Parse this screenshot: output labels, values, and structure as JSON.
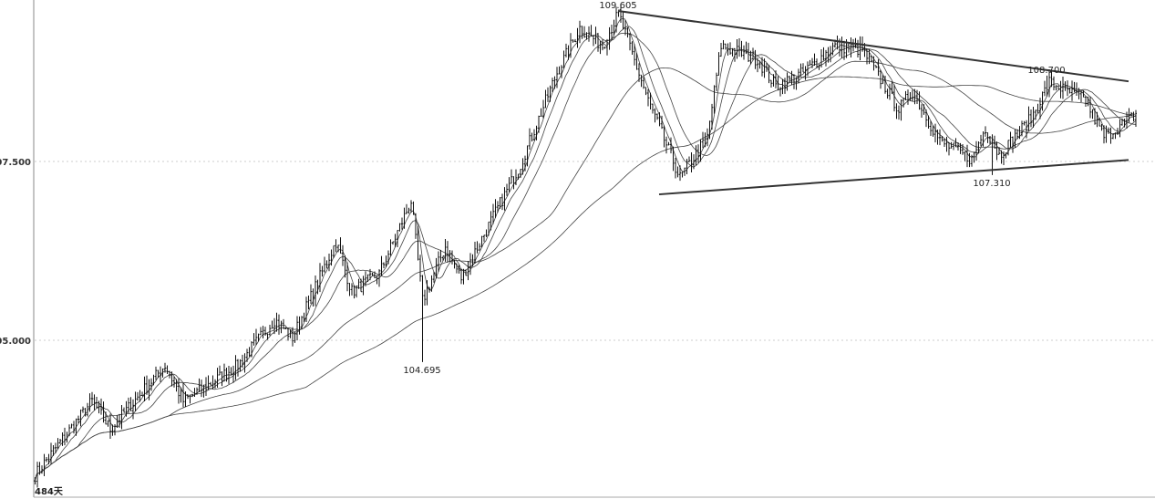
{
  "chart_data": {
    "type": "ohlc",
    "title": "",
    "xlabel": "",
    "ylabel": "",
    "ylim": [
      102.9,
      109.85
    ],
    "y_ticks": [
      {
        "value": 107.5,
        "label": "107.500"
      },
      {
        "value": 105.0,
        "label": "105.000"
      }
    ],
    "grid": "horizontal dotted at ticks",
    "period_label": "484天",
    "bar_count": 484,
    "approx_close_path": [
      [
        0,
        103.12
      ],
      [
        25,
        104.15
      ],
      [
        33,
        103.76
      ],
      [
        57,
        104.65
      ],
      [
        65,
        104.15
      ],
      [
        89,
        104.65
      ],
      [
        105,
        105.29
      ],
      [
        113,
        105.04
      ],
      [
        132,
        106.38
      ],
      [
        139,
        105.68
      ],
      [
        151,
        105.93
      ],
      [
        165,
        106.95
      ],
      [
        170,
        105.55
      ],
      [
        180,
        106.31
      ],
      [
        187,
        105.87
      ],
      [
        213,
        107.46
      ],
      [
        229,
        108.74
      ],
      [
        239,
        109.37
      ],
      [
        249,
        109.12
      ],
      [
        256,
        109.57
      ],
      [
        269,
        108.35
      ],
      [
        283,
        107.27
      ],
      [
        295,
        107.84
      ],
      [
        301,
        109.12
      ],
      [
        317,
        108.93
      ],
      [
        325,
        108.55
      ],
      [
        337,
        108.74
      ],
      [
        351,
        109.12
      ],
      [
        363,
        109.06
      ],
      [
        379,
        108.23
      ],
      [
        385,
        108.48
      ],
      [
        397,
        107.78
      ],
      [
        411,
        107.53
      ],
      [
        417,
        107.97
      ],
      [
        423,
        107.59
      ],
      [
        437,
        108.1
      ],
      [
        445,
        108.61
      ],
      [
        461,
        108.35
      ],
      [
        469,
        107.84
      ],
      [
        483,
        108.16
      ]
    ],
    "extremes": [
      {
        "index": 256,
        "price": 109.605,
        "label": "109.605",
        "kind": "high"
      },
      {
        "index": 170,
        "price": 104.695,
        "label": "104.695",
        "kind": "low"
      },
      {
        "index": 444,
        "price": 108.7,
        "label": "108.700",
        "kind": "high"
      },
      {
        "index": 420,
        "price": 107.31,
        "label": "107.310",
        "kind": "low"
      }
    ],
    "moving_average_periods": [
      5,
      10,
      20,
      60,
      120
    ],
    "trendlines": [
      {
        "name": "upper",
        "from": [
          256,
          109.605
        ],
        "to": [
          480,
          108.62
        ]
      },
      {
        "name": "lower",
        "from": [
          274,
          107.04
        ],
        "to": [
          480,
          107.52
        ]
      }
    ],
    "colors": {
      "bars": "#111111",
      "ma": "#444444",
      "trendline": "#333333",
      "grid": "#cccccc",
      "axis": "#888888"
    }
  }
}
